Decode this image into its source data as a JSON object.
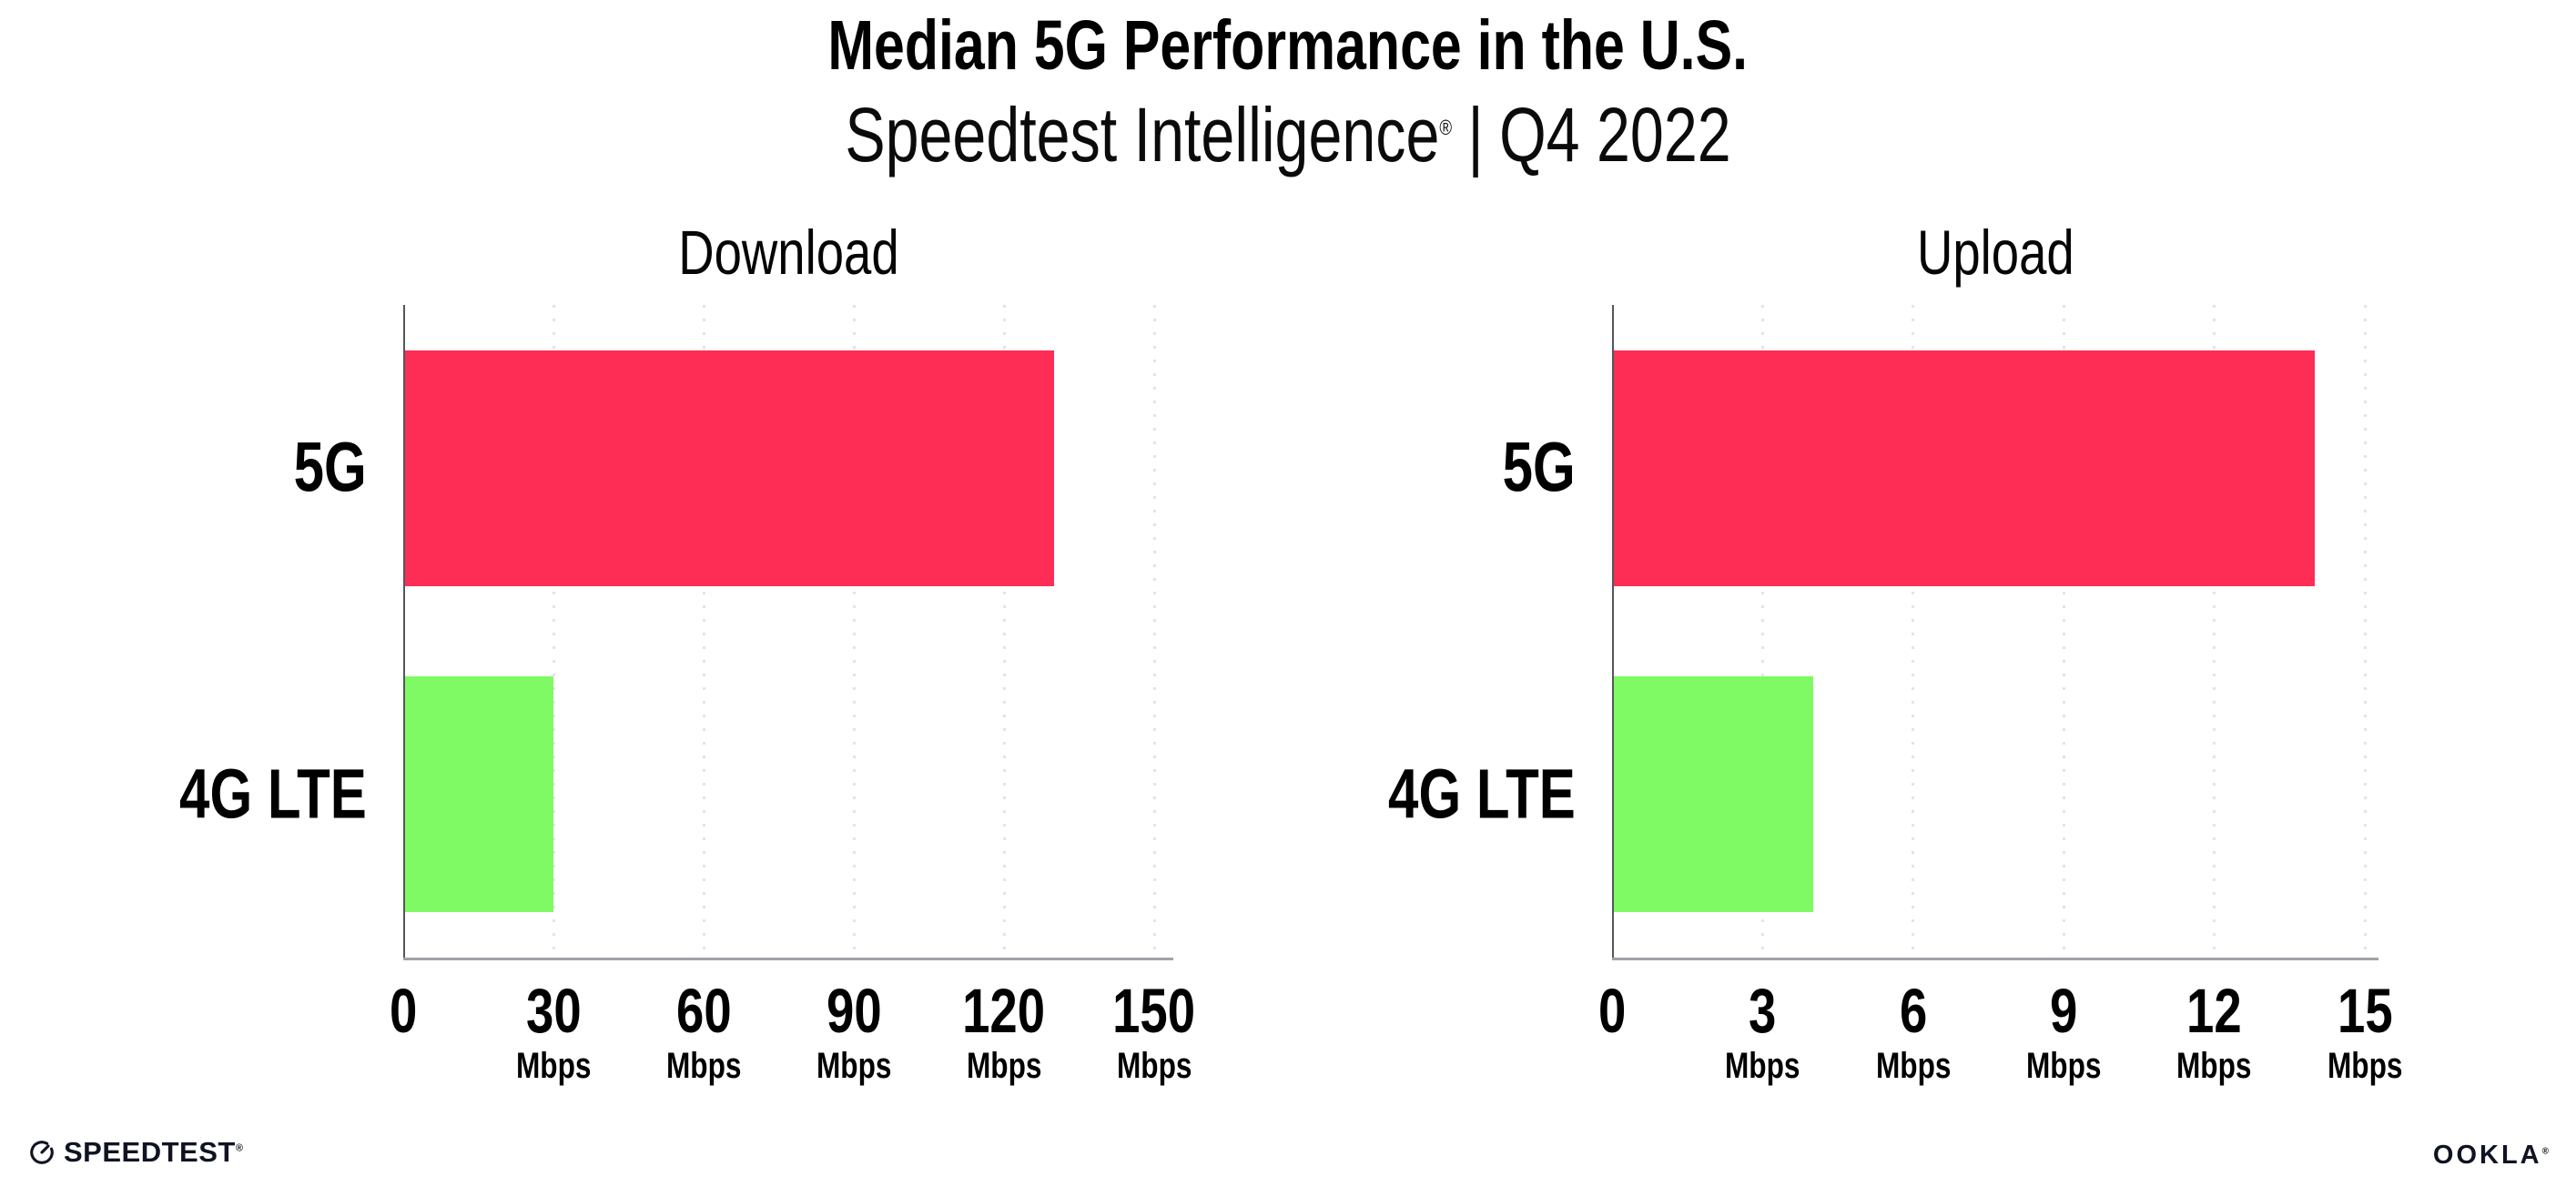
{
  "header": {
    "title": "Median 5G Performance in the U.S.",
    "subtitle_brand": "Speedtest Intelligence",
    "registered_symbol": "®",
    "separator": "|",
    "period": "Q4 2022"
  },
  "chart_data": [
    {
      "type": "bar",
      "orientation": "horizontal",
      "title": "Download",
      "categories": [
        "5G",
        "4G LTE"
      ],
      "values": [
        130,
        30
      ],
      "unit": "Mbps",
      "xlim": [
        0,
        150
      ],
      "xticks": [
        0,
        30,
        60,
        90,
        120,
        150
      ],
      "grid": "vertical-dotted",
      "ylabel": "",
      "xlabel": "Mbps"
    },
    {
      "type": "bar",
      "orientation": "horizontal",
      "title": "Upload",
      "categories": [
        "5G",
        "4G LTE"
      ],
      "values": [
        14,
        4
      ],
      "unit": "Mbps",
      "xlim": [
        0,
        15
      ],
      "xticks": [
        0,
        3,
        6,
        9,
        12,
        15
      ],
      "grid": "vertical-dotted",
      "ylabel": "",
      "xlabel": "Mbps"
    }
  ],
  "colors": {
    "bar_5g": "#FD2D55",
    "bar_4g_lte": "#80FA64",
    "x_axis_line": "#A1A1A7",
    "y_axis_line": "#55555B",
    "gridline": "#E3E3ED",
    "text": "#000000"
  },
  "footer": {
    "speedtest_logo_text": "SPEEDTEST",
    "speedtest_registered": "®",
    "ookla_logo_text": "OOKLA",
    "ookla_registered": "®"
  }
}
